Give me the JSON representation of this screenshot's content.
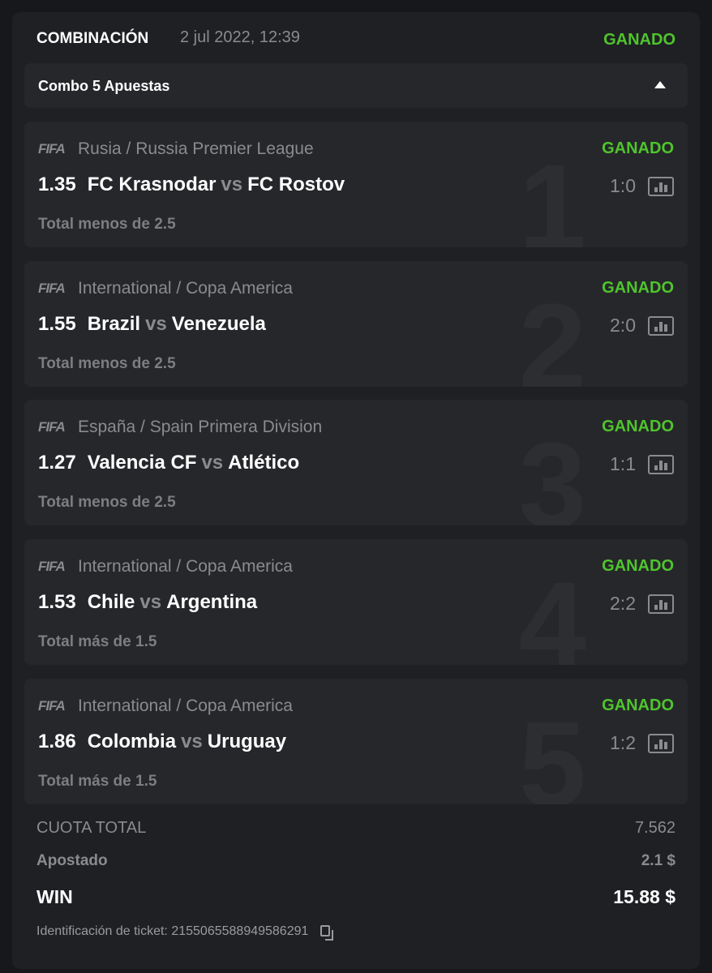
{
  "header": {
    "title": "COMBINACIÓN",
    "date": "2 jul 2022, 12:39",
    "status": "GANADO"
  },
  "combo": {
    "label": "Combo 5 Apuestas"
  },
  "colors": {
    "won": "#4fc52c",
    "background": "#17181b",
    "card": "#1f2024"
  },
  "bets": [
    {
      "index": "1",
      "logo": "FIFA",
      "league": "Rusia / Russia Premier League",
      "status": "GANADO",
      "odd": "1.35",
      "home": "FC Krasnodar",
      "vs": "vs",
      "away": "FC Rostov",
      "score": "1:0",
      "market": "Total menos de 2.5"
    },
    {
      "index": "2",
      "logo": "FIFA",
      "league": "International / Copa America",
      "status": "GANADO",
      "odd": "1.55",
      "home": "Brazil",
      "vs": "vs",
      "away": "Venezuela",
      "score": "2:0",
      "market": "Total menos de 2.5"
    },
    {
      "index": "3",
      "logo": "FIFA",
      "league": "España / Spain Primera Division",
      "status": "GANADO",
      "odd": "1.27",
      "home": "Valencia CF",
      "vs": "vs",
      "away": "Atlético",
      "score": "1:1",
      "market": "Total menos de 2.5"
    },
    {
      "index": "4",
      "logo": "FIFA",
      "league": "International / Copa America",
      "status": "GANADO",
      "odd": "1.53",
      "home": "Chile",
      "vs": "vs",
      "away": "Argentina",
      "score": "2:2",
      "market": "Total más de 1.5"
    },
    {
      "index": "5",
      "logo": "FIFA",
      "league": "International / Copa America",
      "status": "GANADO",
      "odd": "1.86",
      "home": "Colombia",
      "vs": "vs",
      "away": "Uruguay",
      "score": "1:2",
      "market": "Total más de 1.5"
    }
  ],
  "summary": {
    "total_odds_label": "CUOTA TOTAL",
    "total_odds": "7.562",
    "stake_label": "Apostado",
    "stake": "2.1 $",
    "win_label": "WIN",
    "win": "15.88 $",
    "ticket_label": "Identificación de ticket:",
    "ticket_id": "2155065588949586291"
  }
}
